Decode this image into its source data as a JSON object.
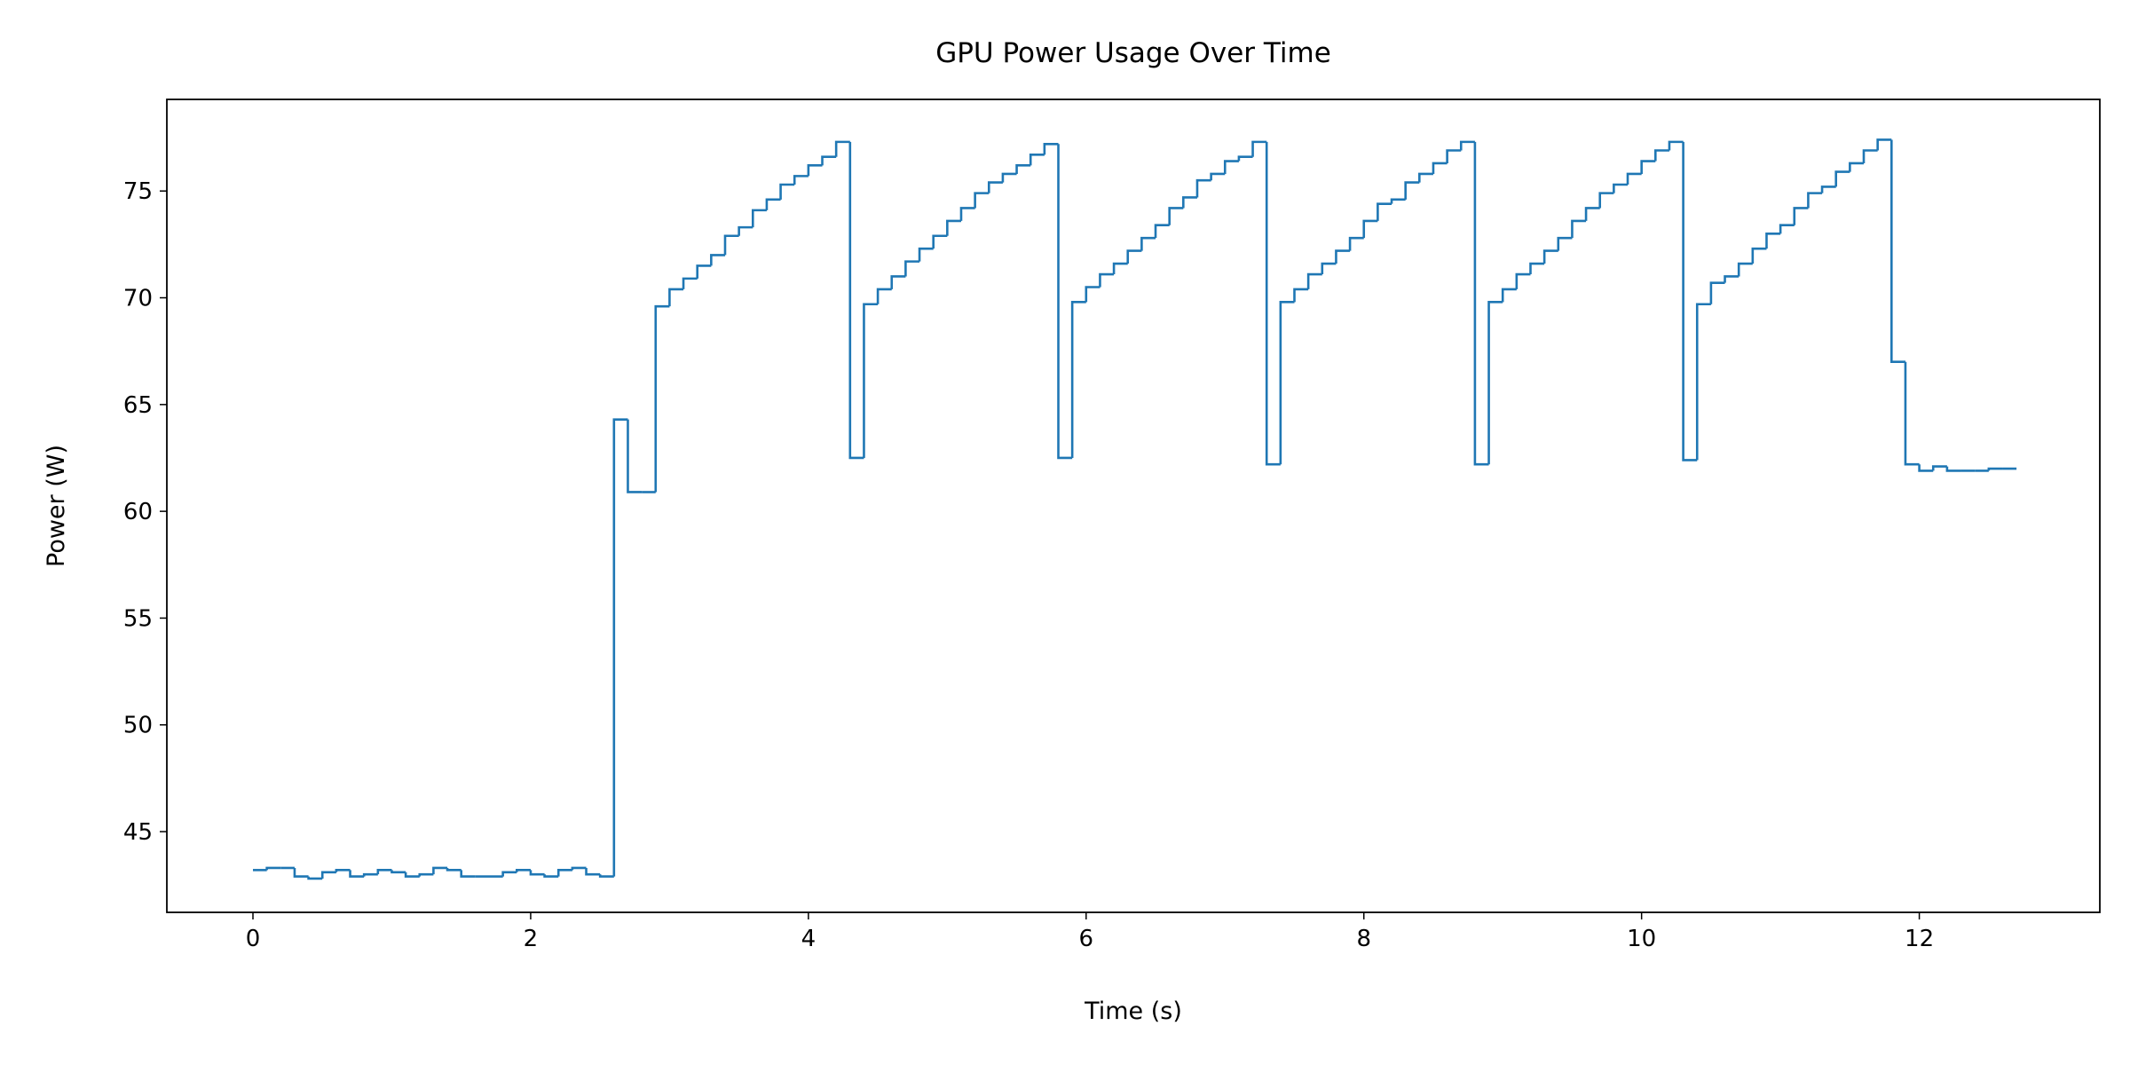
{
  "chart_data": {
    "type": "line",
    "step": "post",
    "title": "GPU Power Usage Over Time",
    "xlabel": "Time (s)",
    "ylabel": "Power (W)",
    "x": [
      0.0,
      0.1,
      0.2,
      0.3,
      0.4,
      0.5,
      0.6,
      0.7,
      0.8,
      0.9,
      1.0,
      1.1,
      1.2,
      1.3,
      1.4,
      1.5,
      1.6,
      1.7,
      1.8,
      1.9,
      2.0,
      2.1,
      2.2,
      2.3,
      2.4,
      2.5,
      2.6,
      2.7,
      2.8,
      2.9,
      3.0,
      3.1,
      3.2,
      3.3,
      3.4,
      3.5,
      3.6,
      3.7,
      3.8,
      3.9,
      4.0,
      4.1,
      4.2,
      4.3,
      4.4,
      4.5,
      4.6,
      4.7,
      4.8,
      4.9,
      5.0,
      5.1,
      5.2,
      5.3,
      5.4,
      5.5,
      5.6,
      5.7,
      5.8,
      5.9,
      6.0,
      6.1,
      6.2,
      6.3,
      6.4,
      6.5,
      6.6,
      6.7,
      6.8,
      6.9,
      7.0,
      7.1,
      7.2,
      7.3,
      7.4,
      7.5,
      7.6,
      7.7,
      7.8,
      7.9,
      8.0,
      8.1,
      8.2,
      8.3,
      8.4,
      8.5,
      8.6,
      8.7,
      8.8,
      8.9,
      9.0,
      9.1,
      9.2,
      9.3,
      9.4,
      9.5,
      9.6,
      9.7,
      9.8,
      9.9,
      10.0,
      10.1,
      10.2,
      10.3,
      10.4,
      10.5,
      10.6,
      10.7,
      10.8,
      10.9,
      11.0,
      11.1,
      11.2,
      11.3,
      11.4,
      11.5,
      11.6,
      11.7,
      11.8,
      11.9,
      12.0,
      12.1,
      12.2,
      12.3,
      12.4,
      12.5,
      12.6,
      12.7
    ],
    "values": [
      43.2,
      43.3,
      43.3,
      42.9,
      42.8,
      43.1,
      43.2,
      42.9,
      43.0,
      43.2,
      43.1,
      42.9,
      43.0,
      43.3,
      43.2,
      42.9,
      42.9,
      42.9,
      43.1,
      43.2,
      43.0,
      42.9,
      43.2,
      43.3,
      43.0,
      42.9,
      64.3,
      60.9,
      60.9,
      69.6,
      70.4,
      70.9,
      71.5,
      72.0,
      72.9,
      73.3,
      74.1,
      74.6,
      75.3,
      75.7,
      76.2,
      76.6,
      77.3,
      62.5,
      69.7,
      70.4,
      71.0,
      71.7,
      72.3,
      72.9,
      73.6,
      74.2,
      74.9,
      75.4,
      75.8,
      76.2,
      76.7,
      77.2,
      62.5,
      69.8,
      70.5,
      71.1,
      71.6,
      72.2,
      72.8,
      73.4,
      74.2,
      74.7,
      75.5,
      75.8,
      76.4,
      76.6,
      77.3,
      62.2,
      69.8,
      70.4,
      71.1,
      71.6,
      72.2,
      72.8,
      73.6,
      74.4,
      74.6,
      75.4,
      75.8,
      76.3,
      76.9,
      77.3,
      62.2,
      69.8,
      70.4,
      71.1,
      71.6,
      72.2,
      72.8,
      73.6,
      74.2,
      74.9,
      75.3,
      75.8,
      76.4,
      76.9,
      77.3,
      62.4,
      69.7,
      70.7,
      71.0,
      71.6,
      72.3,
      73.0,
      73.4,
      74.2,
      74.9,
      75.2,
      75.9,
      76.3,
      76.9,
      77.4,
      67.0,
      62.2,
      61.9,
      62.1,
      61.9,
      61.9,
      61.9,
      62.0,
      62.0,
      62.0
    ],
    "color": "#1f77b4",
    "xlim": [
      -0.62,
      13.3
    ],
    "ylim": [
      41.22,
      79.29
    ],
    "xticks": [
      0,
      2,
      4,
      6,
      8,
      10,
      12
    ],
    "yticks": [
      45,
      50,
      55,
      60,
      65,
      70,
      75
    ],
    "grid": false
  }
}
